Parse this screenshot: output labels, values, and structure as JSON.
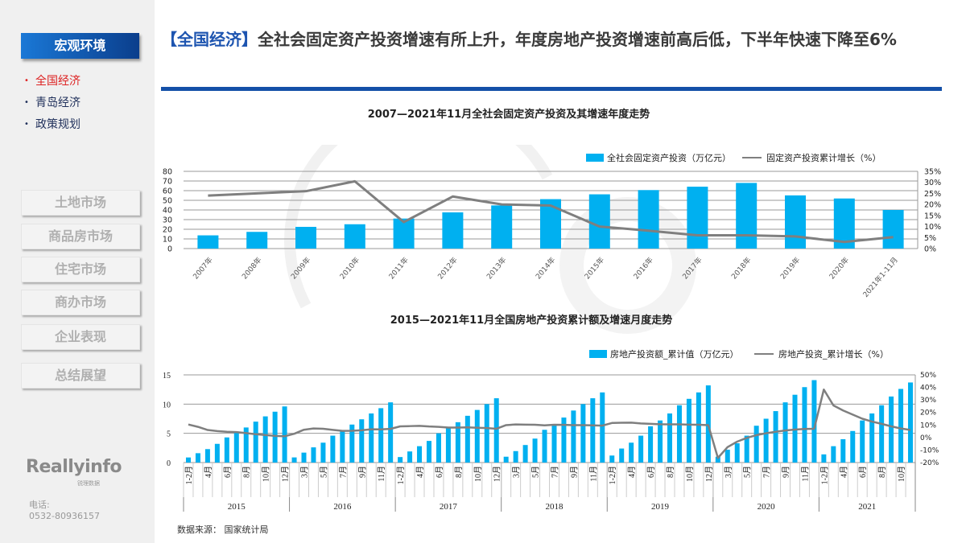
{
  "sidebar": {
    "active_section": "宏观环境",
    "sub_items": [
      {
        "label": "全国经济",
        "active": true
      },
      {
        "label": "青岛经济",
        "active": false
      },
      {
        "label": "政策规划",
        "active": false
      }
    ],
    "sections": [
      "土地市场",
      "商品房市场",
      "住宅市场",
      "商办市场",
      "企业表现",
      "总结展望"
    ],
    "logo": "Reallyinfo",
    "logo_sub": "锐理数据",
    "phone_label": "电话:",
    "phone": "0532-80936157"
  },
  "title": {
    "tag": "【全国经济】",
    "text": "全社会固定资产投资增速有所上升，年度房地产投资增速前高后低，下半年快速下降至6%"
  },
  "source": "数据来源： 国家统计局",
  "colors": {
    "bar": "#00b0f0",
    "line": "#7f7f7f",
    "accent": "#1450a8"
  },
  "chart_data": [
    {
      "type": "bar",
      "title": "2007—2021年11月全社会固定资产投资及其增速年度走势",
      "categories": [
        "2007年",
        "2008年",
        "2009年",
        "2010年",
        "2011年",
        "2012年",
        "2013年",
        "2014年",
        "2015年",
        "2016年",
        "2017年",
        "2018年",
        "2019年",
        "2020年",
        "2021年1-11月"
      ],
      "series": [
        {
          "name": "全社会固定资产投资（万亿元）",
          "type": "bar",
          "axis": "left",
          "values": [
            13.7,
            17.3,
            22.5,
            25.2,
            31.1,
            37.5,
            44.7,
            51.2,
            56.2,
            60.6,
            64.1,
            68.0,
            55.1,
            51.9,
            40.0
          ]
        },
        {
          "name": "固定资产投资累计增长（%）",
          "type": "line",
          "axis": "right",
          "values": [
            24.0,
            25.0,
            26.0,
            30.5,
            12.0,
            23.6,
            20.0,
            19.5,
            10.0,
            8.1,
            6.0,
            6.0,
            5.5,
            3.0,
            5.2
          ]
        }
      ],
      "ylim": [
        0,
        80
      ],
      "yticks": [
        0,
        10,
        20,
        30,
        40,
        50,
        60,
        70,
        80
      ],
      "y2lim": [
        0,
        35
      ],
      "y2ticks": [
        "0%",
        "5%",
        "10%",
        "15%",
        "20%",
        "25%",
        "30%",
        "35%"
      ],
      "grid": true,
      "legend": "top-right"
    },
    {
      "type": "bar",
      "title": "2015—2021年11月全国房地产投资累计额及增速月度走势",
      "years": [
        "2015",
        "2016",
        "2017",
        "2018",
        "2019",
        "2020",
        "2021"
      ],
      "months": [
        "1-2月",
        "3月",
        "4月",
        "5月",
        "6月",
        "7月",
        "8月",
        "9月",
        "10月",
        "11月",
        "12月"
      ],
      "series": [
        {
          "name": "房地产投资额_累计值（万亿元）",
          "type": "bar",
          "axis": "left",
          "values": [
            [
              0.87,
              1.6,
              2.3,
              3.2,
              4.3,
              5.1,
              6.0,
              7.0,
              7.9,
              8.7,
              9.6
            ],
            [
              0.88,
              1.7,
              2.6,
              3.4,
              4.6,
              5.3,
              6.5,
              7.4,
              8.4,
              9.3,
              10.3
            ],
            [
              0.94,
              1.9,
              2.8,
              3.7,
              5.0,
              5.9,
              6.9,
              8.0,
              9.0,
              10.0,
              11.0
            ],
            [
              1.0,
              1.96,
              3.0,
              4.1,
              5.6,
              6.6,
              7.7,
              8.9,
              10.0,
              11.0,
              12.0
            ],
            [
              1.2,
              2.4,
              3.4,
              4.6,
              6.2,
              7.2,
              8.4,
              9.8,
              10.9,
              12.0,
              13.2
            ],
            [
              1.0,
              2.2,
              3.3,
              4.6,
              6.3,
              7.5,
              8.8,
              10.3,
              11.6,
              12.9,
              14.1
            ],
            [
              1.4,
              2.8,
              4.0,
              5.4,
              7.2,
              8.4,
              9.8,
              11.3,
              12.6,
              13.7
            ]
          ]
        },
        {
          "name": "房地产投资_累计增长（%）",
          "type": "line",
          "axis": "right",
          "values": [
            [
              10.4,
              8.5,
              6.0,
              5.1,
              4.6,
              4.3,
              3.5,
              2.6,
              2.0,
              1.3,
              1.0
            ],
            [
              3.0,
              6.2,
              7.2,
              7.0,
              6.1,
              5.3,
              5.4,
              5.8,
              6.6,
              6.5,
              6.9
            ],
            [
              8.9,
              9.1,
              9.3,
              8.8,
              8.5,
              7.9,
              7.9,
              8.1,
              7.8,
              7.5,
              7.0
            ],
            [
              9.9,
              10.4,
              10.3,
              10.2,
              9.7,
              10.2,
              10.1,
              9.9,
              9.9,
              9.7,
              9.5
            ],
            [
              11.6,
              11.8,
              11.9,
              11.2,
              10.9,
              10.6,
              10.5,
              10.5,
              10.3,
              10.2,
              9.9
            ],
            [
              -16.3,
              -7.7,
              -3.3,
              -0.3,
              1.9,
              3.4,
              4.6,
              5.6,
              6.3,
              6.8,
              7.0
            ],
            [
              38.3,
              25.6,
              21.6,
              18.3,
              15.0,
              12.7,
              10.9,
              8.9,
              7.2,
              6.0
            ]
          ]
        }
      ],
      "ylim": [
        0,
        15
      ],
      "yticks": [
        0,
        5,
        10,
        15
      ],
      "y2lim": [
        -20,
        50
      ],
      "y2ticks": [
        "-20%",
        "-10%",
        "0%",
        "10%",
        "20%",
        "30%",
        "40%",
        "50%"
      ],
      "grid": true,
      "legend": "top-right"
    }
  ]
}
